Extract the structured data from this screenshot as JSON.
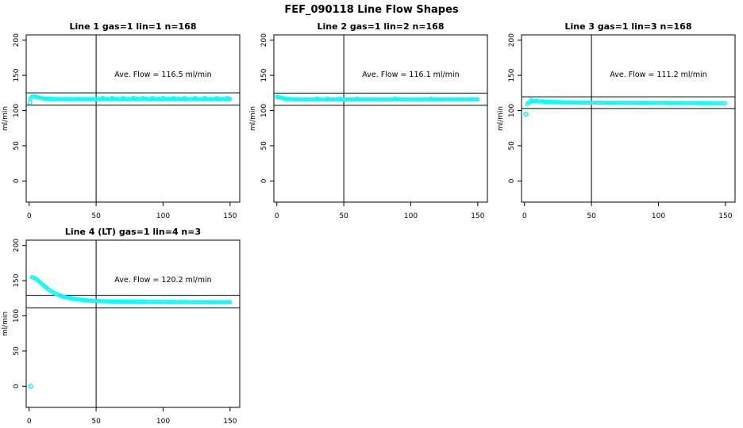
{
  "page": {
    "title": "FEF_090118  Line Flow Shapes"
  },
  "chart_data": [
    {
      "type": "scatter",
      "title": "Line 1 gas=1 lin=1 n=168",
      "annotation": "Ave. Flow =  116.5  ml/min",
      "ave_flow": 116.5,
      "xlabel": "",
      "ylabel": "ml/min",
      "xlim": [
        -2.2,
        157.2
      ],
      "ylim": [
        -30,
        207.5
      ],
      "xticks": [
        0,
        50,
        100,
        150
      ],
      "yticks": [
        0,
        50,
        100,
        150,
        200
      ],
      "vline_x": 50,
      "hlines": [
        125.2,
        107.8
      ],
      "point_color": "#00FFFF",
      "line_color": "#000000",
      "grid": false,
      "legend": "none",
      "points": [
        [
          1,
          117.5
        ],
        [
          2,
          119.2
        ],
        [
          3,
          119.9
        ],
        [
          4,
          120
        ],
        [
          5,
          119.6
        ],
        [
          6,
          119.1
        ],
        [
          7,
          118.6
        ],
        [
          8,
          118.1
        ],
        [
          9,
          117.7
        ],
        [
          10,
          117.4
        ],
        [
          12,
          117
        ],
        [
          14,
          116.8
        ],
        [
          16,
          116.6
        ],
        [
          18,
          116.5
        ],
        [
          21,
          116.4
        ],
        [
          24,
          116.3
        ],
        [
          27,
          116.5
        ],
        [
          30,
          116.4
        ],
        [
          33,
          116.2
        ],
        [
          36,
          116.5
        ],
        [
          39,
          116.3
        ],
        [
          42,
          116.4
        ],
        [
          45,
          116.2
        ],
        [
          48,
          116.5
        ],
        [
          51,
          116.3
        ],
        [
          54,
          116.4
        ],
        [
          57,
          116.5
        ],
        [
          60,
          116.3
        ],
        [
          63,
          116.6
        ],
        [
          66,
          116.4
        ],
        [
          69,
          116.2
        ],
        [
          72,
          116.5
        ],
        [
          75,
          116.3
        ],
        [
          78,
          116.4
        ],
        [
          81,
          116.6
        ],
        [
          84,
          116.3
        ],
        [
          87,
          116.5
        ],
        [
          90,
          116.2
        ],
        [
          93,
          116.4
        ],
        [
          96,
          116.5
        ],
        [
          99,
          116.3
        ],
        [
          102,
          116.4
        ],
        [
          105,
          116.6
        ],
        [
          108,
          116.3
        ],
        [
          111,
          116.5
        ],
        [
          114,
          116.2
        ],
        [
          117,
          116.4
        ],
        [
          120,
          116.3
        ],
        [
          123,
          116.5
        ],
        [
          126,
          116.4
        ],
        [
          129,
          116.2
        ],
        [
          132,
          116.5
        ],
        [
          135,
          116.3
        ],
        [
          138,
          116.4
        ],
        [
          141,
          116.2
        ],
        [
          144,
          116.5
        ],
        [
          147,
          116.3
        ],
        [
          150,
          116.4
        ]
      ],
      "extra_points": [
        [
          55,
          118.4
        ],
        [
          62,
          118.2
        ],
        [
          70,
          118.5
        ],
        [
          78,
          118.3
        ],
        [
          85,
          118.2
        ],
        [
          92,
          118.4
        ],
        [
          100,
          118.3
        ],
        [
          108,
          118.2
        ],
        [
          116,
          118.4
        ],
        [
          124,
          118.2
        ],
        [
          131,
          118.3
        ],
        [
          140,
          118.2
        ],
        [
          148,
          118.3
        ]
      ],
      "outliers": [
        [
          0.5,
          111.5
        ]
      ]
    },
    {
      "type": "scatter",
      "title": "Line 2 gas=1 lin=2 n=168",
      "annotation": "Ave. Flow =  116.1  ml/min",
      "ave_flow": 116.1,
      "xlabel": "",
      "ylabel": "ml/min",
      "xlim": [
        -2.2,
        157.2
      ],
      "ylim": [
        -30,
        207.5
      ],
      "xticks": [
        0,
        50,
        100,
        150
      ],
      "yticks": [
        0,
        50,
        100,
        150,
        200
      ],
      "vline_x": 50,
      "hlines": [
        124.8,
        107.4
      ],
      "point_color": "#00FFFF",
      "line_color": "#000000",
      "grid": false,
      "legend": "none",
      "points": [
        [
          0,
          119.5
        ],
        [
          1,
          119.1
        ],
        [
          2,
          118.7
        ],
        [
          3,
          118.2
        ],
        [
          4,
          117.8
        ],
        [
          5,
          117.4
        ],
        [
          6,
          117.1
        ],
        [
          7,
          116.8
        ],
        [
          8,
          116.6
        ],
        [
          10,
          116.3
        ],
        [
          12,
          116.1
        ],
        [
          14,
          116
        ],
        [
          16,
          115.9
        ],
        [
          19,
          115.9
        ],
        [
          22,
          116
        ],
        [
          25,
          115.8
        ],
        [
          28,
          116
        ],
        [
          31,
          115.9
        ],
        [
          34,
          115.8
        ],
        [
          37,
          116
        ],
        [
          40,
          115.9
        ],
        [
          43,
          115.8
        ],
        [
          46,
          116
        ],
        [
          49,
          115.9
        ],
        [
          52,
          115.8
        ],
        [
          55,
          116
        ],
        [
          58,
          115.9
        ],
        [
          61,
          115.8
        ],
        [
          64,
          116
        ],
        [
          67,
          115.9
        ],
        [
          70,
          115.8
        ],
        [
          73,
          116
        ],
        [
          76,
          115.9
        ],
        [
          79,
          115.8
        ],
        [
          82,
          116
        ],
        [
          85,
          115.9
        ],
        [
          88,
          115.8
        ],
        [
          91,
          116
        ],
        [
          94,
          115.9
        ],
        [
          97,
          115.8
        ],
        [
          100,
          116
        ],
        [
          103,
          115.9
        ],
        [
          106,
          115.8
        ],
        [
          109,
          116
        ],
        [
          112,
          115.9
        ],
        [
          115,
          115.8
        ],
        [
          118,
          116
        ],
        [
          121,
          115.9
        ],
        [
          124,
          115.8
        ],
        [
          127,
          116
        ],
        [
          130,
          115.9
        ],
        [
          133,
          115.8
        ],
        [
          136,
          116
        ],
        [
          139,
          115.9
        ],
        [
          142,
          115.8
        ],
        [
          145,
          116
        ],
        [
          148,
          115.9
        ],
        [
          150,
          116
        ]
      ],
      "extra_points": [
        [
          30,
          117.6
        ],
        [
          38,
          117.4
        ],
        [
          47,
          117.5
        ],
        [
          60,
          117.3
        ],
        [
          88,
          117.4
        ],
        [
          115,
          117.3
        ]
      ],
      "outliers": []
    },
    {
      "type": "scatter",
      "title": "Line 3 gas=1 lin=3 n=168",
      "annotation": "Ave. Flow =  111.2  ml/min",
      "ave_flow": 111.2,
      "xlabel": "",
      "ylabel": "ml/min",
      "xlim": [
        -2.2,
        157.2
      ],
      "ylim": [
        -30,
        207.5
      ],
      "xticks": [
        0,
        50,
        100,
        150
      ],
      "yticks": [
        0,
        50,
        100,
        150,
        200
      ],
      "vline_x": 50,
      "hlines": [
        119.5,
        102.9
      ],
      "point_color": "#00FFFF",
      "line_color": "#000000",
      "grid": false,
      "legend": "none",
      "points": [
        [
          2,
          109
        ],
        [
          3,
          111.5
        ],
        [
          4,
          112.6
        ],
        [
          5,
          113.1
        ],
        [
          6,
          113.3
        ],
        [
          7,
          113.3
        ],
        [
          8,
          113.2
        ],
        [
          9,
          113.1
        ],
        [
          10,
          113
        ],
        [
          12,
          112.9
        ],
        [
          14,
          112.7
        ],
        [
          16,
          112.5
        ],
        [
          18,
          112.4
        ],
        [
          20,
          112.2
        ],
        [
          23,
          112
        ],
        [
          26,
          111.9
        ],
        [
          29,
          111.8
        ],
        [
          32,
          111.7
        ],
        [
          35,
          111.6
        ],
        [
          38,
          111.5
        ],
        [
          41,
          111.5
        ],
        [
          44,
          111.4
        ],
        [
          47,
          111.4
        ],
        [
          50,
          111.3
        ],
        [
          55,
          111.3
        ],
        [
          60,
          111.2
        ],
        [
          65,
          111.2
        ],
        [
          70,
          111.1
        ],
        [
          75,
          111.1
        ],
        [
          80,
          111
        ],
        [
          85,
          111
        ],
        [
          90,
          111
        ],
        [
          95,
          110.9
        ],
        [
          100,
          110.9
        ],
        [
          105,
          110.9
        ],
        [
          110,
          110.8
        ],
        [
          115,
          110.8
        ],
        [
          120,
          110.8
        ],
        [
          125,
          110.7
        ],
        [
          130,
          110.7
        ],
        [
          135,
          110.7
        ],
        [
          140,
          110.6
        ],
        [
          145,
          110.6
        ],
        [
          150,
          110.6
        ]
      ],
      "extra_points": [
        [
          5,
          115
        ],
        [
          9,
          114.5
        ],
        [
          14,
          114
        ]
      ],
      "outliers": [
        [
          1,
          95
        ]
      ]
    },
    {
      "type": "scatter",
      "title": "Line 4 (LT) gas=1 lin=4 n=3",
      "annotation": "Ave. Flow =  120.2  ml/min",
      "ave_flow": 120.2,
      "xlabel": "",
      "ylabel": "ml/min",
      "xlim": [
        -2.2,
        157.2
      ],
      "ylim": [
        -30,
        207.5
      ],
      "xticks": [
        0,
        50,
        100,
        150
      ],
      "yticks": [
        0,
        50,
        100,
        150,
        200
      ],
      "vline_x": 50,
      "hlines": [
        129.2,
        111.2
      ],
      "point_color": "#00FFFF",
      "line_color": "#000000",
      "grid": false,
      "legend": "none",
      "points": [
        [
          2,
          155
        ],
        [
          3,
          154.6
        ],
        [
          4,
          153.8
        ],
        [
          5,
          152.6
        ],
        [
          6,
          151.2
        ],
        [
          7,
          149.6
        ],
        [
          8,
          147.9
        ],
        [
          9,
          146.2
        ],
        [
          10,
          144.5
        ],
        [
          11,
          142.9
        ],
        [
          12,
          141.3
        ],
        [
          13,
          139.8
        ],
        [
          14,
          138.4
        ],
        [
          15,
          137
        ],
        [
          16,
          135.7
        ],
        [
          17,
          134.5
        ],
        [
          18,
          133.4
        ],
        [
          19,
          132.4
        ],
        [
          20,
          131.4
        ],
        [
          21,
          130.5
        ],
        [
          22,
          129.7
        ],
        [
          23,
          129
        ],
        [
          24,
          128.3
        ],
        [
          25,
          127.7
        ],
        [
          26,
          127.1
        ],
        [
          27,
          126.6
        ],
        [
          28,
          126.1
        ],
        [
          29,
          125.7
        ],
        [
          30,
          125.3
        ],
        [
          32,
          124.6
        ],
        [
          34,
          124
        ],
        [
          36,
          123.5
        ],
        [
          38,
          123
        ],
        [
          40,
          122.6
        ],
        [
          42,
          122.3
        ],
        [
          44,
          122
        ],
        [
          46,
          121.7
        ],
        [
          48,
          121.5
        ],
        [
          50,
          121.3
        ],
        [
          53,
          121
        ],
        [
          56,
          120.8
        ],
        [
          59,
          120.6
        ],
        [
          62,
          120.5
        ],
        [
          65,
          120.4
        ],
        [
          68,
          120.3
        ],
        [
          71,
          120.2
        ],
        [
          74,
          120.1
        ],
        [
          77,
          120.1
        ],
        [
          80,
          120
        ],
        [
          84,
          120
        ],
        [
          88,
          119.9
        ],
        [
          92,
          119.9
        ],
        [
          96,
          119.8
        ],
        [
          100,
          119.8
        ],
        [
          104,
          119.8
        ],
        [
          108,
          119.7
        ],
        [
          112,
          119.7
        ],
        [
          116,
          119.7
        ],
        [
          120,
          119.6
        ],
        [
          124,
          119.6
        ],
        [
          128,
          119.6
        ],
        [
          132,
          119.6
        ],
        [
          136,
          119.5
        ],
        [
          140,
          119.5
        ],
        [
          144,
          119.5
        ],
        [
          148,
          119.5
        ],
        [
          150,
          119.5
        ]
      ],
      "extra_points": [],
      "outliers": [
        [
          1,
          0
        ]
      ]
    }
  ]
}
